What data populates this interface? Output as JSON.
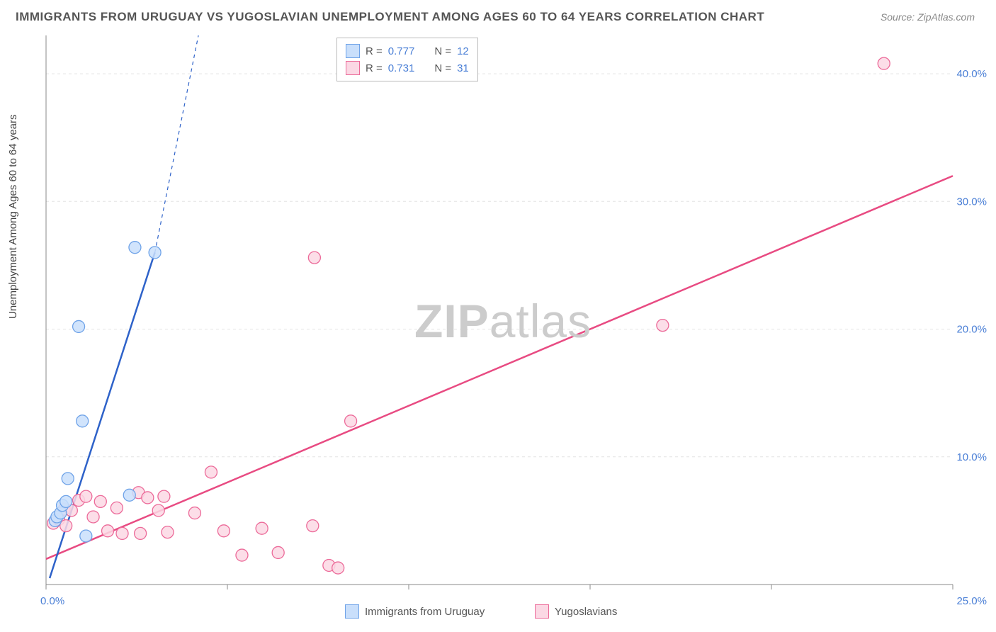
{
  "title": "IMMIGRANTS FROM URUGUAY VS YUGOSLAVIAN UNEMPLOYMENT AMONG AGES 60 TO 64 YEARS CORRELATION CHART",
  "source": "Source: ZipAtlas.com",
  "ylabel": "Unemployment Among Ages 60 to 64 years",
  "watermark_a": "ZIP",
  "watermark_b": "atlas",
  "chart": {
    "type": "scatter",
    "xlim": [
      0,
      25
    ],
    "ylim": [
      0,
      43
    ],
    "xtick_positions": [
      0,
      5,
      10,
      15,
      20,
      25
    ],
    "xtick_labels": [
      "0.0%",
      "",
      "",
      "",
      "",
      "25.0%"
    ],
    "ytick_positions": [
      10,
      20,
      30,
      40
    ],
    "ytick_labels": [
      "10.0%",
      "20.0%",
      "30.0%",
      "40.0%"
    ],
    "grid_color": "#e4e4e4",
    "grid_dash": "4,4",
    "axis_color": "#888888",
    "background_color": "#ffffff",
    "marker_radius": 8.5,
    "marker_stroke_width": 1.3,
    "series": [
      {
        "name": "Immigrants from Uruguay",
        "fill_color": "#c9dffb",
        "stroke_color": "#6fa3e8",
        "line_color": "#2e62c9",
        "line_width": 2.5,
        "R": "0.777",
        "N": "12",
        "trend": {
          "x1": 0.1,
          "y1": 0.5,
          "x2": 3.0,
          "y2": 26.0,
          "dash_x2": 4.2,
          "dash_y2": 43.0
        },
        "points": [
          {
            "x": 0.25,
            "y": 5.0
          },
          {
            "x": 0.3,
            "y": 5.3
          },
          {
            "x": 0.4,
            "y": 5.6
          },
          {
            "x": 0.45,
            "y": 6.2
          },
          {
            "x": 0.55,
            "y": 6.5
          },
          {
            "x": 0.6,
            "y": 8.3
          },
          {
            "x": 1.0,
            "y": 12.8
          },
          {
            "x": 1.1,
            "y": 3.8
          },
          {
            "x": 0.9,
            "y": 20.2
          },
          {
            "x": 2.3,
            "y": 7.0
          },
          {
            "x": 2.45,
            "y": 26.4
          },
          {
            "x": 3.0,
            "y": 26.0
          }
        ]
      },
      {
        "name": "Yugoslavians",
        "fill_color": "#fbd8e4",
        "stroke_color": "#ec6a99",
        "line_color": "#e84b82",
        "line_width": 2.5,
        "R": "0.731",
        "N": "31",
        "trend": {
          "x1": 0.0,
          "y1": 2.0,
          "x2": 25.0,
          "y2": 32.0
        },
        "points": [
          {
            "x": 0.2,
            "y": 4.8
          },
          {
            "x": 0.35,
            "y": 5.1
          },
          {
            "x": 0.5,
            "y": 5.9
          },
          {
            "x": 0.55,
            "y": 4.6
          },
          {
            "x": 0.7,
            "y": 5.8
          },
          {
            "x": 0.9,
            "y": 6.6
          },
          {
            "x": 1.1,
            "y": 6.9
          },
          {
            "x": 1.3,
            "y": 5.3
          },
          {
            "x": 1.5,
            "y": 6.5
          },
          {
            "x": 1.7,
            "y": 4.2
          },
          {
            "x": 1.95,
            "y": 6.0
          },
          {
            "x": 2.1,
            "y": 4.0
          },
          {
            "x": 2.55,
            "y": 7.2
          },
          {
            "x": 2.6,
            "y": 4.0
          },
          {
            "x": 2.8,
            "y": 6.8
          },
          {
            "x": 3.1,
            "y": 5.8
          },
          {
            "x": 3.25,
            "y": 6.9
          },
          {
            "x": 3.35,
            "y": 4.1
          },
          {
            "x": 4.1,
            "y": 5.6
          },
          {
            "x": 4.55,
            "y": 8.8
          },
          {
            "x": 4.9,
            "y": 4.2
          },
          {
            "x": 5.4,
            "y": 2.3
          },
          {
            "x": 5.95,
            "y": 4.4
          },
          {
            "x": 6.4,
            "y": 2.5
          },
          {
            "x": 7.35,
            "y": 4.6
          },
          {
            "x": 7.8,
            "y": 1.5
          },
          {
            "x": 8.05,
            "y": 1.3
          },
          {
            "x": 8.4,
            "y": 12.8
          },
          {
            "x": 7.4,
            "y": 25.6
          },
          {
            "x": 17.0,
            "y": 20.3
          },
          {
            "x": 23.1,
            "y": 40.8
          }
        ]
      }
    ]
  },
  "legend": {
    "R_label": "R =",
    "N_label": "N ="
  }
}
